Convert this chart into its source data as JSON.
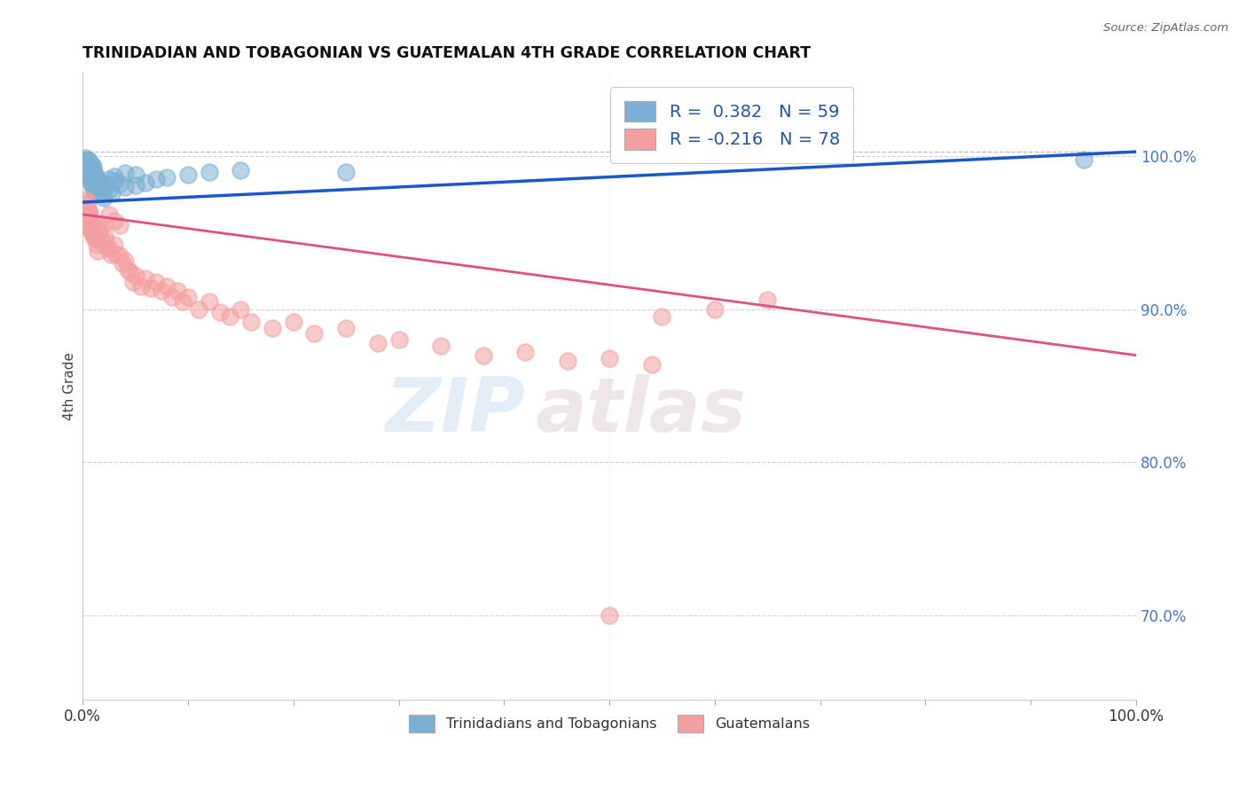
{
  "title": "TRINIDADIAN AND TOBAGONIAN VS GUATEMALAN 4TH GRADE CORRELATION CHART",
  "source_text": "Source: ZipAtlas.com",
  "ylabel": "4th Grade",
  "legend_r1": "R =  0.382   N = 59",
  "legend_r2": "R = -0.216   N = 78",
  "legend_label1": "Trinidadians and Tobagonians",
  "legend_label2": "Guatemalans",
  "blue_color": "#7bafd4",
  "pink_color": "#f4a0a0",
  "blue_line_color": "#1a56cc",
  "pink_line_color": "#e05080",
  "watermark_zip": "ZIP",
  "watermark_atlas": "atlas",
  "xlim": [
    0.0,
    1.0
  ],
  "ylim": [
    0.645,
    1.055
  ],
  "y_ticks": [
    0.7,
    0.8,
    0.9,
    1.0
  ],
  "y_tick_labels": [
    "70.0%",
    "80.0%",
    "90.0%",
    "100.0%"
  ],
  "x_ticks": [
    0.0,
    1.0
  ],
  "x_tick_labels": [
    "0.0%",
    "100.0%"
  ],
  "blue_line_x": [
    0.0,
    1.0
  ],
  "blue_line_y": [
    0.97,
    1.003
  ],
  "pink_line_x": [
    0.0,
    1.0
  ],
  "pink_line_y": [
    0.962,
    0.87
  ],
  "blue_x": [
    0.001,
    0.002,
    0.002,
    0.003,
    0.003,
    0.004,
    0.004,
    0.005,
    0.005,
    0.006,
    0.006,
    0.007,
    0.007,
    0.008,
    0.008,
    0.009,
    0.01,
    0.01,
    0.011,
    0.012,
    0.013,
    0.014,
    0.015,
    0.016,
    0.017,
    0.018,
    0.02,
    0.022,
    0.025,
    0.028,
    0.03,
    0.035,
    0.04,
    0.05,
    0.06,
    0.07,
    0.08,
    0.1,
    0.12,
    0.15,
    0.002,
    0.003,
    0.004,
    0.005,
    0.006,
    0.007,
    0.008,
    0.009,
    0.01,
    0.011,
    0.012,
    0.015,
    0.02,
    0.025,
    0.03,
    0.04,
    0.05,
    0.25,
    0.95
  ],
  "blue_y": [
    0.993,
    0.997,
    0.999,
    0.997,
    0.995,
    0.996,
    0.994,
    0.998,
    0.996,
    0.997,
    0.995,
    0.996,
    0.994,
    0.995,
    0.993,
    0.994,
    0.993,
    0.991,
    0.99,
    0.988,
    0.986,
    0.984,
    0.982,
    0.98,
    0.978,
    0.976,
    0.982,
    0.98,
    0.978,
    0.976,
    0.984,
    0.982,
    0.98,
    0.981,
    0.983,
    0.985,
    0.986,
    0.988,
    0.99,
    0.991,
    0.992,
    0.99,
    0.988,
    0.987,
    0.986,
    0.984,
    0.983,
    0.981,
    0.98,
    0.978,
    0.977,
    0.975,
    0.973,
    0.985,
    0.987,
    0.989,
    0.988,
    0.99,
    0.998
  ],
  "pink_x": [
    0.002,
    0.003,
    0.003,
    0.004,
    0.004,
    0.005,
    0.005,
    0.006,
    0.006,
    0.007,
    0.007,
    0.008,
    0.008,
    0.009,
    0.01,
    0.01,
    0.011,
    0.012,
    0.013,
    0.014,
    0.015,
    0.016,
    0.017,
    0.018,
    0.02,
    0.021,
    0.022,
    0.023,
    0.025,
    0.027,
    0.03,
    0.032,
    0.035,
    0.038,
    0.04,
    0.043,
    0.045,
    0.048,
    0.05,
    0.055,
    0.06,
    0.065,
    0.07,
    0.075,
    0.08,
    0.085,
    0.09,
    0.095,
    0.1,
    0.11,
    0.12,
    0.13,
    0.14,
    0.15,
    0.16,
    0.18,
    0.2,
    0.22,
    0.25,
    0.28,
    0.3,
    0.34,
    0.38,
    0.42,
    0.46,
    0.5,
    0.54,
    0.55,
    0.6,
    0.65,
    0.003,
    0.004,
    0.005,
    0.006,
    0.025,
    0.03,
    0.035,
    0.5
  ],
  "pink_y": [
    0.96,
    0.958,
    0.955,
    0.957,
    0.954,
    0.962,
    0.958,
    0.964,
    0.96,
    0.962,
    0.958,
    0.956,
    0.952,
    0.95,
    0.948,
    0.952,
    0.95,
    0.946,
    0.942,
    0.938,
    0.956,
    0.952,
    0.948,
    0.944,
    0.956,
    0.948,
    0.944,
    0.94,
    0.94,
    0.936,
    0.942,
    0.936,
    0.935,
    0.93,
    0.932,
    0.926,
    0.924,
    0.918,
    0.922,
    0.915,
    0.92,
    0.914,
    0.918,
    0.912,
    0.915,
    0.908,
    0.912,
    0.905,
    0.908,
    0.9,
    0.905,
    0.898,
    0.895,
    0.9,
    0.892,
    0.888,
    0.892,
    0.884,
    0.888,
    0.878,
    0.88,
    0.876,
    0.87,
    0.872,
    0.866,
    0.868,
    0.864,
    0.895,
    0.9,
    0.906,
    0.972,
    0.968,
    0.97,
    0.965,
    0.962,
    0.958,
    0.955,
    0.7
  ]
}
